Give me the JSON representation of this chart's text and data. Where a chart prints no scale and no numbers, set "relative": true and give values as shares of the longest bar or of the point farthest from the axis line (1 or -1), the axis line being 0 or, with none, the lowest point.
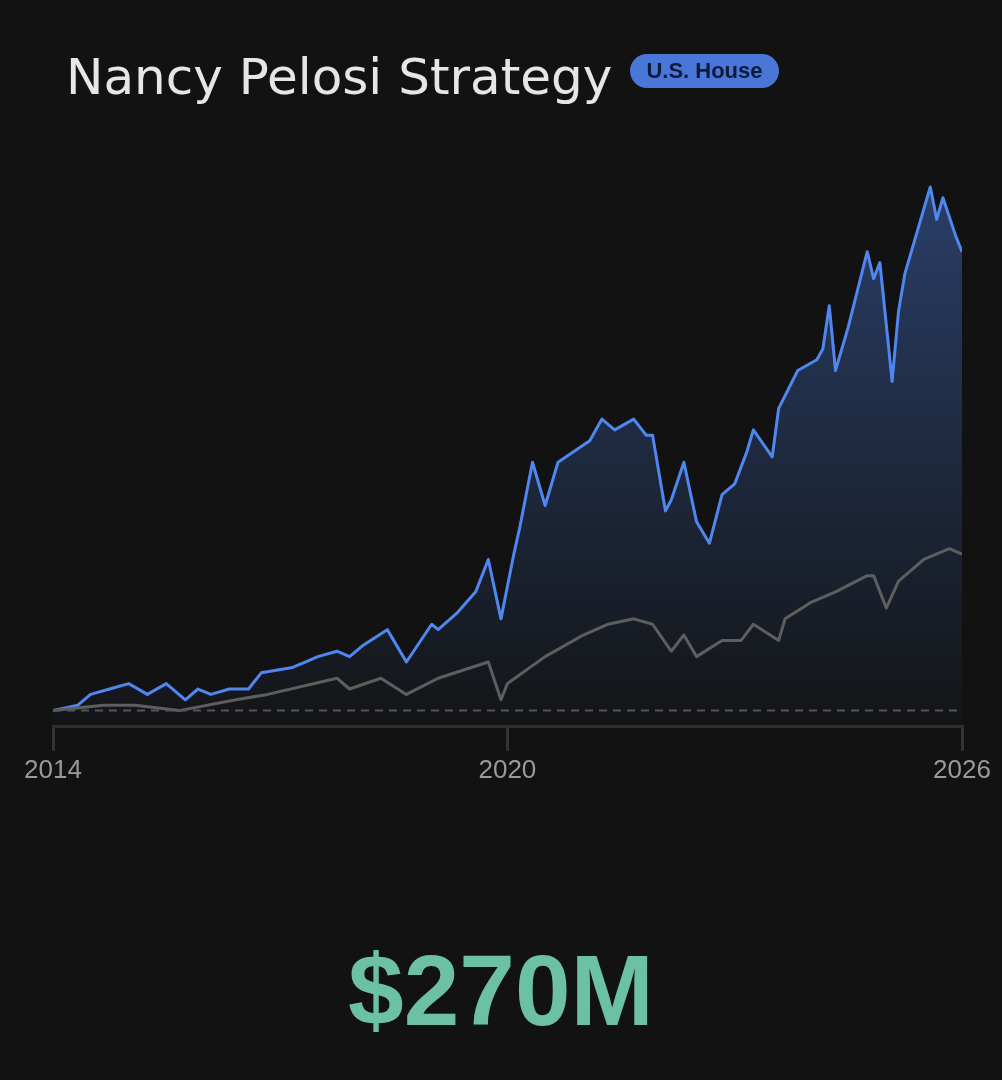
{
  "chart_data": {
    "type": "line",
    "title": "Nancy Pelosi Strategy",
    "subtitle": "U.S. House",
    "relative": true,
    "xlim": [
      "2014",
      "2026"
    ],
    "xticks": [
      "2014",
      "2020",
      "2026"
    ],
    "series": [
      {
        "type": "area",
        "color": "#4f86f0",
        "x": [
          "2014-01",
          "2014-05",
          "2014-07",
          "2014-10",
          "2015-01",
          "2015-04",
          "2015-07",
          "2015-10",
          "2015-12",
          "2016-02",
          "2016-05",
          "2016-08",
          "2016-10",
          "2017-03",
          "2017-05",
          "2017-07",
          "2017-10",
          "2017-12",
          "2018-02",
          "2018-06",
          "2018-09",
          "2019-01",
          "2019-02",
          "2019-05",
          "2019-08",
          "2019-10",
          "2019-12",
          "2020-02",
          "2020-03",
          "2020-05",
          "2020-07",
          "2020-09",
          "2021-02",
          "2021-04",
          "2021-06",
          "2021-09",
          "2021-11",
          "2021-12",
          "2022-02",
          "2022-03",
          "2022-05",
          "2022-07",
          "2022-09",
          "2022-11",
          "2023-01",
          "2023-03",
          "2023-04",
          "2023-07",
          "2023-08",
          "2023-11",
          "2024-02",
          "2024-03",
          "2024-04",
          "2024-05",
          "2024-07",
          "2024-10",
          "2024-11",
          "2024-12",
          "2025-01-05",
          "2025-01-29",
          "2025-03",
          "2025-04",
          "2025-06",
          "2025-08",
          "2025-09",
          "2025-10",
          "2025-12",
          "2026-01"
        ],
        "values": [
          0.03,
          0.04,
          0.06,
          0.07,
          0.08,
          0.06,
          0.08,
          0.05,
          0.07,
          0.06,
          0.07,
          0.07,
          0.1,
          0.11,
          0.12,
          0.13,
          0.14,
          0.13,
          0.15,
          0.18,
          0.12,
          0.19,
          0.18,
          0.21,
          0.25,
          0.31,
          0.2,
          0.32,
          0.37,
          0.49,
          0.41,
          0.49,
          0.53,
          0.57,
          0.55,
          0.57,
          0.54,
          0.54,
          0.4,
          0.42,
          0.49,
          0.38,
          0.34,
          0.43,
          0.45,
          0.51,
          0.55,
          0.5,
          0.59,
          0.66,
          0.68,
          0.7,
          0.78,
          0.66,
          0.74,
          0.88,
          0.83,
          0.86,
          0.73,
          0.64,
          0.77,
          0.84,
          0.92,
          1.0,
          0.94,
          0.98,
          0.91,
          0.88
        ]
      },
      {
        "type": "line",
        "color": "#5e5e5e",
        "x": [
          "2014-01",
          "2014-09",
          "2015-02",
          "2015-09",
          "2016-06",
          "2016-11",
          "2017-10",
          "2017-12",
          "2018-05",
          "2018-09",
          "2019-02",
          "2019-10",
          "2019-12",
          "2020-01",
          "2020-07",
          "2021-01",
          "2021-05",
          "2021-09",
          "2021-12",
          "2022-03",
          "2022-05",
          "2022-07",
          "2022-11",
          "2023-02",
          "2023-04",
          "2023-08",
          "2023-09",
          "2024-01",
          "2024-05",
          "2024-10",
          "2024-11",
          "2025-01",
          "2025-03",
          "2025-07",
          "2025-11",
          "2026-01"
        ],
        "values": [
          0.03,
          0.04,
          0.04,
          0.03,
          0.05,
          0.06,
          0.09,
          0.07,
          0.09,
          0.06,
          0.09,
          0.12,
          0.05,
          0.08,
          0.13,
          0.17,
          0.19,
          0.2,
          0.19,
          0.14,
          0.17,
          0.13,
          0.16,
          0.16,
          0.19,
          0.16,
          0.2,
          0.23,
          0.25,
          0.28,
          0.28,
          0.22,
          0.27,
          0.31,
          0.33,
          0.32
        ]
      }
    ],
    "ref_lines": [
      {
        "axis": "y",
        "value": 0.03,
        "line_style": "dashed",
        "color": "#555555"
      }
    ],
    "annotations": [
      "$270M"
    ]
  }
}
